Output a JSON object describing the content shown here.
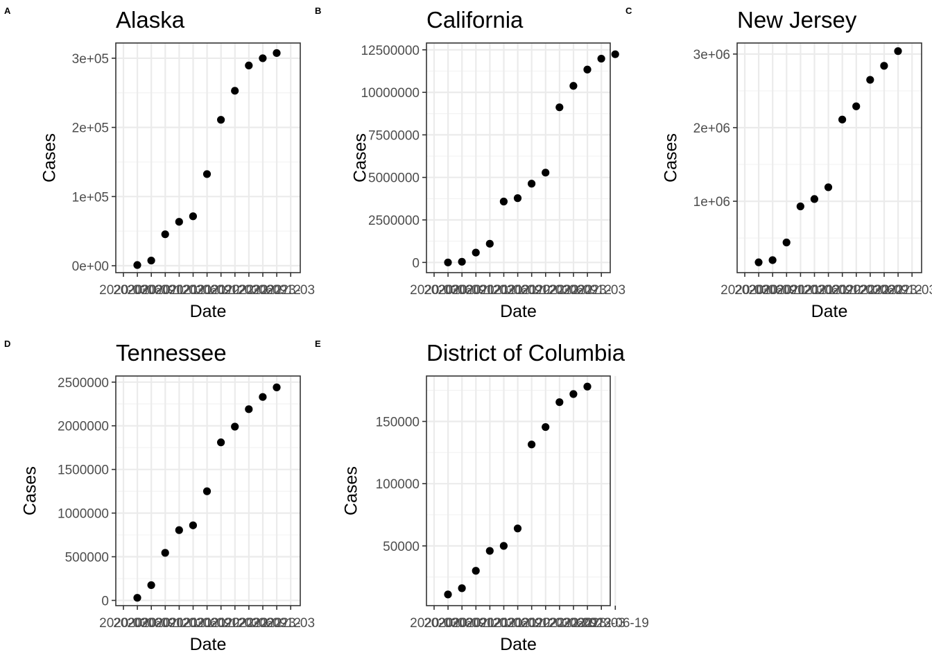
{
  "chart_data": [
    {
      "type": "scatter",
      "tag": "A",
      "title": "Alaska",
      "xlabel": "Date",
      "ylabel": "Cases",
      "ylim": [
        -10000,
        322000
      ],
      "yticks": [
        0,
        100000,
        200000,
        300000
      ],
      "ytick_labels": [
        "0e+00",
        "1e+05",
        "2e+05",
        "3e+05"
      ],
      "xtick_labels": [
        "2020-03",
        "2020-06",
        "2020-09",
        "2020-12",
        "2021-03",
        "2021-06",
        "2021-09",
        "2021-12",
        "2022-03",
        "2022-06",
        "2022-09",
        "2022-12",
        "2023-03"
      ],
      "values": [
        1000,
        7500,
        45500,
        63500,
        71500,
        132500,
        211000,
        253000,
        289500,
        300000,
        307500
      ]
    },
    {
      "type": "scatter",
      "tag": "B",
      "title": "California",
      "xlabel": "Date",
      "ylabel": "Cases",
      "ylim": [
        -600000,
        12900000
      ],
      "yticks": [
        0,
        2500000,
        5000000,
        7500000,
        10000000,
        12500000
      ],
      "ytick_labels": [
        "0",
        "2500000",
        "5000000",
        "7500000",
        "10000000",
        "12500000"
      ],
      "xtick_labels": [
        "2020-03",
        "2020-06",
        "2020-09",
        "2020-12",
        "2021-03",
        "2021-06",
        "2021-09",
        "2021-12",
        "2022-03",
        "2022-06",
        "2022-09",
        "2022-12",
        "2023-03"
      ],
      "values": [
        0,
        40000,
        580000,
        1100000,
        3580000,
        3780000,
        4630000,
        5280000,
        9120000,
        10380000,
        11340000,
        11980000,
        12240000
      ]
    },
    {
      "type": "scatter",
      "tag": "C",
      "title": "New Jersey",
      "xlabel": "Date",
      "ylabel": "Cases",
      "ylim": [
        30000,
        3150000
      ],
      "yticks": [
        1000000,
        2000000,
        3000000
      ],
      "ytick_labels": [
        "1e+06",
        "2e+06",
        "3e+06"
      ],
      "xtick_labels": [
        "2020-03",
        "2020-06",
        "2020-09",
        "2020-12",
        "2021-03",
        "2021-06",
        "2021-09",
        "2021-12",
        "2022-03",
        "2022-06",
        "2022-09",
        "2022-12",
        "2023-03"
      ],
      "values": [
        170000,
        200000,
        440000,
        930000,
        1030000,
        1190000,
        2110000,
        2290000,
        2650000,
        2840000,
        3040000
      ]
    },
    {
      "type": "scatter",
      "tag": "D",
      "title": "Tennessee",
      "xlabel": "Date",
      "ylabel": "Cases",
      "ylim": [
        -60000,
        2570000
      ],
      "yticks": [
        0,
        500000,
        1000000,
        1500000,
        2000000,
        2500000
      ],
      "ytick_labels": [
        "0",
        "500000",
        "1000000",
        "1500000",
        "2000000",
        "2500000"
      ],
      "xtick_labels": [
        "2020-03",
        "2020-06",
        "2020-09",
        "2020-12",
        "2021-03",
        "2021-06",
        "2021-09",
        "2021-12",
        "2022-03",
        "2022-06",
        "2022-09",
        "2022-12",
        "2023-03"
      ],
      "values": [
        30000,
        175000,
        545000,
        805000,
        860000,
        1250000,
        1810000,
        1990000,
        2190000,
        2330000,
        2440000
      ]
    },
    {
      "type": "scatter",
      "tag": "E",
      "title": "District of Columbia",
      "xlabel": "Date",
      "ylabel": "Cases",
      "ylim": [
        2000,
        186500
      ],
      "yticks": [
        50000,
        100000,
        150000
      ],
      "ytick_labels": [
        "50000",
        "100000",
        "150000"
      ],
      "xtick_labels": [
        "2020-03",
        "2020-06",
        "2020-09",
        "2020-12",
        "2021-03",
        "2021-06",
        "2021-09",
        "2021-12",
        "2022-03",
        "2022-06",
        "2022-09",
        "2022-12",
        "2023-03",
        "2023-06-19"
      ],
      "values": [
        11000,
        16000,
        30000,
        46000,
        50000,
        64000,
        131500,
        145500,
        165500,
        172000,
        178000
      ]
    }
  ]
}
